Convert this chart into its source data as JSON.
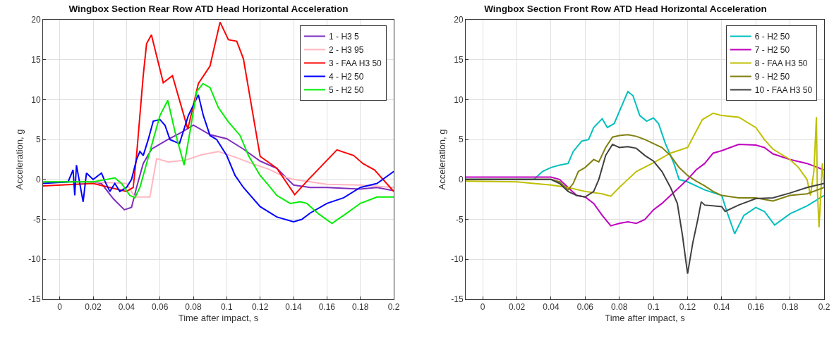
{
  "chart_data": [
    {
      "type": "line",
      "title": "Wingbox Section Rear Row ATD Head Horizontal Acceleration",
      "xlabel": "Time after impact, s",
      "ylabel": "Acceleration, g",
      "xlim": [
        -0.01,
        0.2
      ],
      "xticks": [
        0,
        0.02,
        0.04,
        0.06,
        0.08,
        0.1,
        0.12,
        0.14,
        0.16,
        0.18,
        0.2
      ],
      "ylim": [
        -15,
        20
      ],
      "yticks": [
        -15,
        -10,
        -5,
        0,
        5,
        10,
        15,
        20
      ],
      "grid": true,
      "legend": "top right",
      "marker": "none",
      "line_style": "solid",
      "series": [
        {
          "name": "1 - H3 5",
          "color": "#7e2fbf",
          "x": [
            -0.01,
            0,
            0.01,
            0.02,
            0.025,
            0.032,
            0.0387,
            0.043,
            0.046,
            0.05,
            0.055,
            0.0647,
            0.073,
            0.08,
            0.09,
            0.1,
            0.11,
            0.12,
            0.13,
            0.14,
            0.15,
            0.16,
            0.18,
            0.19,
            0.2
          ],
          "values": [
            -0.3,
            -0.3,
            -0.3,
            -0.3,
            -0.5,
            -2.4,
            -3.8,
            -3.5,
            -1,
            2,
            3.8,
            5,
            5.9,
            6.8,
            5.6,
            5.1,
            3.8,
            2.3,
            1.4,
            -0.7,
            -1,
            -1,
            -1.2,
            -1,
            -1.4
          ]
        },
        {
          "name": "2 - H3 95",
          "color": "#ffb6c1",
          "x": [
            -0.01,
            0.02,
            0.04,
            0.045,
            0.054,
            0.058,
            0.065,
            0.075,
            0.085,
            0.095,
            0.105,
            0.115,
            0.125,
            0.135,
            0.14,
            0.15,
            0.16,
            0.18,
            0.2
          ],
          "values": [
            -0.3,
            -0.3,
            -0.5,
            -2.2,
            -2.2,
            2.6,
            2.2,
            2.4,
            3.1,
            3.5,
            2.8,
            2,
            1.3,
            0.3,
            0,
            -0.3,
            -0.6,
            -0.7,
            -1
          ]
        },
        {
          "name": "3 - FAA H3 50",
          "color": "#ff0000",
          "x": [
            -0.01,
            0.02,
            0.03,
            0.04,
            0.044,
            0.046,
            0.05,
            0.052,
            0.0549,
            0.062,
            0.0675,
            0.0767,
            0.083,
            0.09,
            0.096,
            0.101,
            0.106,
            0.11,
            0.12,
            0.13,
            0.1407,
            0.149,
            0.166,
            0.176,
            0.1815,
            0.1885,
            0.2
          ],
          "values": [
            -0.8,
            -0.5,
            -1,
            -1.5,
            -1,
            3,
            13,
            17,
            18.1,
            12.1,
            13,
            6.3,
            12,
            14.2,
            19.7,
            17.5,
            17.3,
            15.1,
            2.9,
            1.4,
            -1.9,
            0,
            3.7,
            3,
            2,
            1.2,
            -1.5
          ]
        },
        {
          "name": "4 - H2 50",
          "color": "#0000ff",
          "x": [
            -0.01,
            0.005,
            0.008,
            0.009,
            0.01,
            0.012,
            0.014,
            0.016,
            0.02,
            0.025,
            0.027,
            0.03,
            0.033,
            0.036,
            0.04,
            0.043,
            0.046,
            0.048,
            0.05,
            0.053,
            0.056,
            0.06,
            0.063,
            0.066,
            0.0717,
            0.077,
            0.083,
            0.086,
            0.09,
            0.094,
            0.1,
            0.105,
            0.11,
            0.12,
            0.13,
            0.14,
            0.145,
            0.15,
            0.16,
            0.17,
            0.18,
            0.19,
            0.2
          ],
          "values": [
            -0.5,
            -0.3,
            1.2,
            -2,
            1.8,
            -0.5,
            -2.8,
            0.8,
            0,
            0.8,
            -0.2,
            -1.5,
            -0.5,
            -1.5,
            -1,
            0,
            2.5,
            3.5,
            3,
            5,
            7.3,
            7.5,
            6.8,
            5,
            4.5,
            8,
            10.6,
            8,
            5.5,
            5,
            3,
            0.5,
            -1,
            -3.4,
            -4.7,
            -5.3,
            -5,
            -4.2,
            -3,
            -2.3,
            -1,
            -0.5,
            1
          ]
        },
        {
          "name": "5 - H2 50",
          "color": "#00ee00",
          "x": [
            -0.01,
            0.02,
            0.028,
            0.033,
            0.037,
            0.042,
            0.045,
            0.048,
            0.052,
            0.056,
            0.06,
            0.0647,
            0.069,
            0.0745,
            0.078,
            0.082,
            0.0858,
            0.09,
            0.095,
            0.101,
            0.108,
            0.113,
            0.12,
            0.125,
            0.13,
            0.138,
            0.144,
            0.148,
            0.155,
            0.163,
            0.17,
            0.18,
            0.19,
            0.2
          ],
          "values": [
            -0.3,
            -0.3,
            0,
            0.2,
            -0.5,
            -2,
            -2.3,
            -1,
            2,
            5,
            8,
            9.9,
            6,
            1.8,
            6,
            11,
            12,
            11.5,
            9,
            7.2,
            5.5,
            3,
            0.5,
            -0.7,
            -2,
            -3,
            -2.8,
            -3,
            -4.3,
            -5.5,
            -4.5,
            -3,
            -2.2,
            -2.2
          ]
        }
      ]
    },
    {
      "type": "line",
      "title": "Wingbox Section Front Row ATD Head Horizontal Acceleration",
      "xlabel": "Time after impact, s",
      "ylabel": "Acceleration, g",
      "xlim": [
        -0.01,
        0.2
      ],
      "xticks": [
        0,
        0.02,
        0.04,
        0.06,
        0.08,
        0.1,
        0.12,
        0.14,
        0.16,
        0.18,
        0.2
      ],
      "ylim": [
        -15,
        20
      ],
      "yticks": [
        -15,
        -10,
        -5,
        0,
        5,
        10,
        15,
        20
      ],
      "grid": true,
      "legend": "top right",
      "marker": "none",
      "line_style": "solid",
      "series": [
        {
          "name": "6 - H2 50",
          "color": "#00bfbf",
          "x": [
            -0.01,
            0.01,
            0.03,
            0.035,
            0.04,
            0.045,
            0.05,
            0.053,
            0.058,
            0.062,
            0.065,
            0.07,
            0.073,
            0.077,
            0.082,
            0.085,
            0.088,
            0.092,
            0.096,
            0.1,
            0.103,
            0.107,
            0.112,
            0.115,
            0.12,
            0.13,
            0.14,
            0.143,
            0.1476,
            0.153,
            0.16,
            0.165,
            0.171,
            0.18,
            0.19,
            0.2
          ],
          "values": [
            0,
            0,
            0,
            1,
            1.5,
            1.8,
            2,
            3.5,
            4.8,
            5,
            6.5,
            7.6,
            6.5,
            7,
            9.5,
            11,
            10.5,
            8,
            7.3,
            7.7,
            7,
            4.5,
            2,
            0,
            -0.3,
            -1.3,
            -2,
            -4,
            -6.8,
            -4.5,
            -3.5,
            -4,
            -5.7,
            -4.3,
            -3.3,
            -2
          ]
        },
        {
          "name": "7 - H2 50",
          "color": "#bf00bf",
          "x": [
            -0.01,
            0.02,
            0.04,
            0.045,
            0.05,
            0.055,
            0.06,
            0.065,
            0.07,
            0.075,
            0.08,
            0.085,
            0.09,
            0.095,
            0.1,
            0.105,
            0.11,
            0.115,
            0.12,
            0.125,
            0.13,
            0.135,
            0.14,
            0.145,
            0.15,
            0.16,
            0.165,
            0.17,
            0.18,
            0.19,
            0.2
          ],
          "values": [
            0.3,
            0.3,
            0.3,
            0,
            -1,
            -2,
            -2.2,
            -3,
            -4.5,
            -5.8,
            -5.5,
            -5.3,
            -5.5,
            -5,
            -3.8,
            -3,
            -2,
            -1,
            0,
            1.2,
            2,
            3.3,
            3.6,
            4,
            4.4,
            4.3,
            4,
            3.2,
            2.5,
            2,
            1.2
          ]
        },
        {
          "name": "8 - FAA H3 50",
          "color": "#bfbf00",
          "x": [
            -0.01,
            0.02,
            0.04,
            0.05,
            0.06,
            0.07,
            0.075,
            0.08,
            0.085,
            0.09,
            0.1,
            0.11,
            0.12,
            0.1287,
            0.135,
            0.14,
            0.15,
            0.16,
            0.165,
            0.17,
            0.18,
            0.185,
            0.19,
            0.192,
            0.194,
            0.1955,
            0.196,
            0.197,
            0.198,
            0.199,
            0.2
          ],
          "values": [
            -0.2,
            -0.3,
            -0.7,
            -1,
            -1.5,
            -1.8,
            -2.1,
            -1,
            0,
            1,
            2.1,
            3.3,
            4,
            7.5,
            8.3,
            8,
            7.8,
            6.5,
            5,
            3.8,
            2.5,
            1.5,
            0,
            -2,
            1,
            7.8,
            -1,
            -6,
            -2,
            2,
            -1
          ]
        },
        {
          "name": "9 - H2 50",
          "color": "#808010",
          "x": [
            -0.01,
            0.02,
            0.04,
            0.045,
            0.05,
            0.053,
            0.056,
            0.06,
            0.065,
            0.068,
            0.072,
            0.076,
            0.08,
            0.085,
            0.09,
            0.095,
            0.1,
            0.105,
            0.11,
            0.115,
            0.12,
            0.125,
            0.13,
            0.135,
            0.14,
            0.15,
            0.16,
            0.17,
            0.18,
            0.19,
            0.2
          ],
          "values": [
            0,
            0,
            0,
            -0.3,
            -1.3,
            -0.5,
            1,
            1.5,
            2.5,
            2.2,
            4,
            5.3,
            5.5,
            5.6,
            5.4,
            5,
            4.5,
            4,
            3,
            1.5,
            0.5,
            -0.2,
            -0.8,
            -1.5,
            -2,
            -2.3,
            -2.3,
            -2.7,
            -2,
            -1.8,
            -1
          ]
        },
        {
          "name": "10 - FAA H3 50",
          "color": "#404040",
          "x": [
            -0.01,
            0.02,
            0.04,
            0.045,
            0.05,
            0.055,
            0.06,
            0.065,
            0.068,
            0.072,
            0.076,
            0.08,
            0.085,
            0.09,
            0.095,
            0.1,
            0.105,
            0.11,
            0.114,
            0.117,
            0.12,
            0.123,
            0.126,
            0.128,
            0.13,
            0.14,
            0.142,
            0.15,
            0.16,
            0.17,
            0.18,
            0.19,
            0.2
          ],
          "values": [
            0,
            0,
            0,
            -0.5,
            -1.5,
            -2,
            -2.2,
            -1.5,
            0,
            3,
            4.4,
            4,
            4.1,
            3.9,
            3,
            2.3,
            1,
            -1,
            -3,
            -7,
            -11.8,
            -8,
            -5,
            -2.8,
            -3.2,
            -3.4,
            -4,
            -3.2,
            -2.4,
            -2.3,
            -1.7,
            -1,
            -0.5
          ]
        }
      ]
    }
  ]
}
